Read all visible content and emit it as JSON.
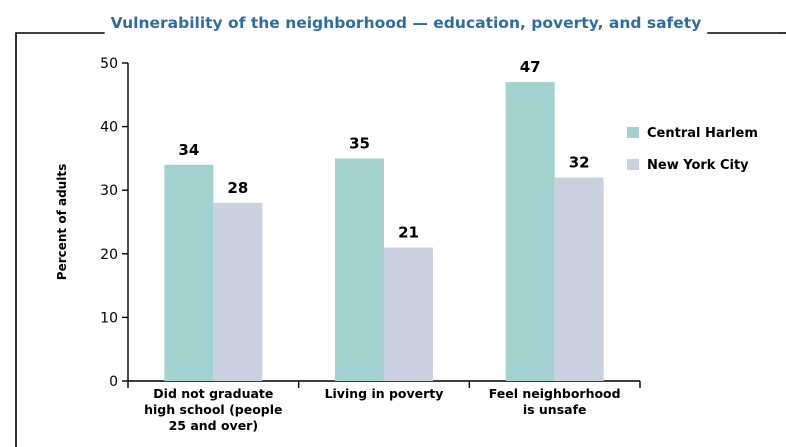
{
  "chart_data": {
    "type": "bar",
    "title": "Vulnerability of the neighborhood — education, poverty, and safety",
    "ylabel": "Percent of adults",
    "xlabel": "",
    "ylim": [
      0,
      50
    ],
    "yticks": [
      0,
      10,
      20,
      30,
      40,
      50
    ],
    "categories": [
      [
        "Did not graduate",
        "high school (people",
        "25 and over)"
      ],
      [
        "Living in poverty"
      ],
      [
        "Feel neighborhood",
        "is unsafe"
      ]
    ],
    "series": [
      {
        "name": "Central Harlem",
        "color": "#a2d2d0",
        "values": [
          34,
          35,
          47
        ]
      },
      {
        "name": "New York City",
        "color": "#c9d1e0",
        "values": [
          28,
          21,
          32
        ]
      }
    ],
    "legend": "right"
  }
}
